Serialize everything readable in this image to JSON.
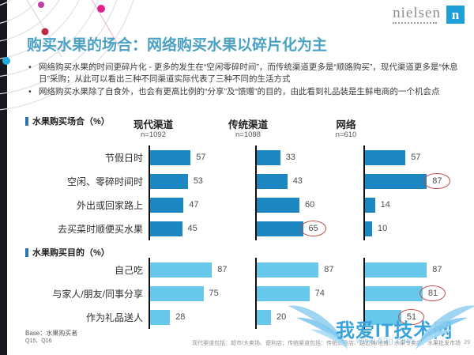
{
  "slide": {
    "logo": {
      "brand": "nielsen",
      "mark": "n"
    },
    "title": "购买水果的场合：网络购买水果以碎片化为主",
    "bullets": [
      "网络购买水果的时间更碎片化 - 更多的发生在“空闲零碎时间”，而传统渠道更多是“顺路购买”，现代渠道更多是“休息日”采购；从此可以看出三种不同渠道实际代表了三种不同的生活方式",
      "网络购买水果除了自食外，也会有更高比例的“分享”及“馈赠”的目的，由此看到礼品装是生鲜电商的一个机会点"
    ],
    "bullet_glyph": "•",
    "base_note": "Base：水果购买者",
    "question_note": "Q15、Q16",
    "footnote": "现代渠道包括：超市/大卖场、便利店；传统渠道包括：传统杂货店、路边摊/地摊、水果专卖店、水果批发市场",
    "page_number": "29",
    "watermark": {
      "text": "我爱IT技术网",
      "url": "www.52ij.com"
    },
    "colors": {
      "title": "#4BA1C3",
      "logo_square": "#1E9FD8",
      "section_marker": "#2E74B5",
      "watermark_text": "#3BA3DC"
    }
  },
  "columns": [
    {
      "name": "现代渠道",
      "n": "n=1092"
    },
    {
      "name": "传统渠道",
      "n": "n=1088"
    },
    {
      "name": "网络",
      "n": "n=610"
    }
  ],
  "highlight_color": "#BE4B48",
  "chart_data": [
    {
      "type": "bar",
      "orientation": "horizontal",
      "title": "水果购买场合（%）",
      "xlim": [
        0,
        100
      ],
      "grid": false,
      "bar_color": "#1C87C1",
      "categories": [
        "节假日时",
        "空闲、零碎时间时",
        "外出或回家路上",
        "去买菜时顺便买水果"
      ],
      "series": [
        {
          "name": "现代渠道 (n=1092)",
          "values": [
            57,
            53,
            47,
            45
          ],
          "circled": [
            false,
            false,
            false,
            false
          ]
        },
        {
          "name": "传统渠道 (n=1088)",
          "values": [
            33,
            43,
            60,
            65
          ],
          "circled": [
            false,
            false,
            false,
            true
          ]
        },
        {
          "name": "网络 (n=610)",
          "values": [
            57,
            87,
            14,
            10
          ],
          "circled": [
            false,
            true,
            false,
            false
          ]
        }
      ]
    },
    {
      "type": "bar",
      "orientation": "horizontal",
      "title": "水果购买目的（%）",
      "xlim": [
        0,
        100
      ],
      "grid": false,
      "bar_color": "#67C8EC",
      "categories": [
        "自己吃",
        "与家人/朋友/同事分享",
        "作为礼品送人"
      ],
      "series": [
        {
          "name": "现代渠道 (n=1092)",
          "values": [
            87,
            75,
            28
          ],
          "circled": [
            false,
            false,
            false
          ]
        },
        {
          "name": "传统渠道 (n=1088)",
          "values": [
            87,
            74,
            20
          ],
          "circled": [
            false,
            false,
            false
          ]
        },
        {
          "name": "网络 (n=610)",
          "values": [
            87,
            81,
            51
          ],
          "circled": [
            false,
            true,
            true
          ]
        }
      ]
    }
  ]
}
